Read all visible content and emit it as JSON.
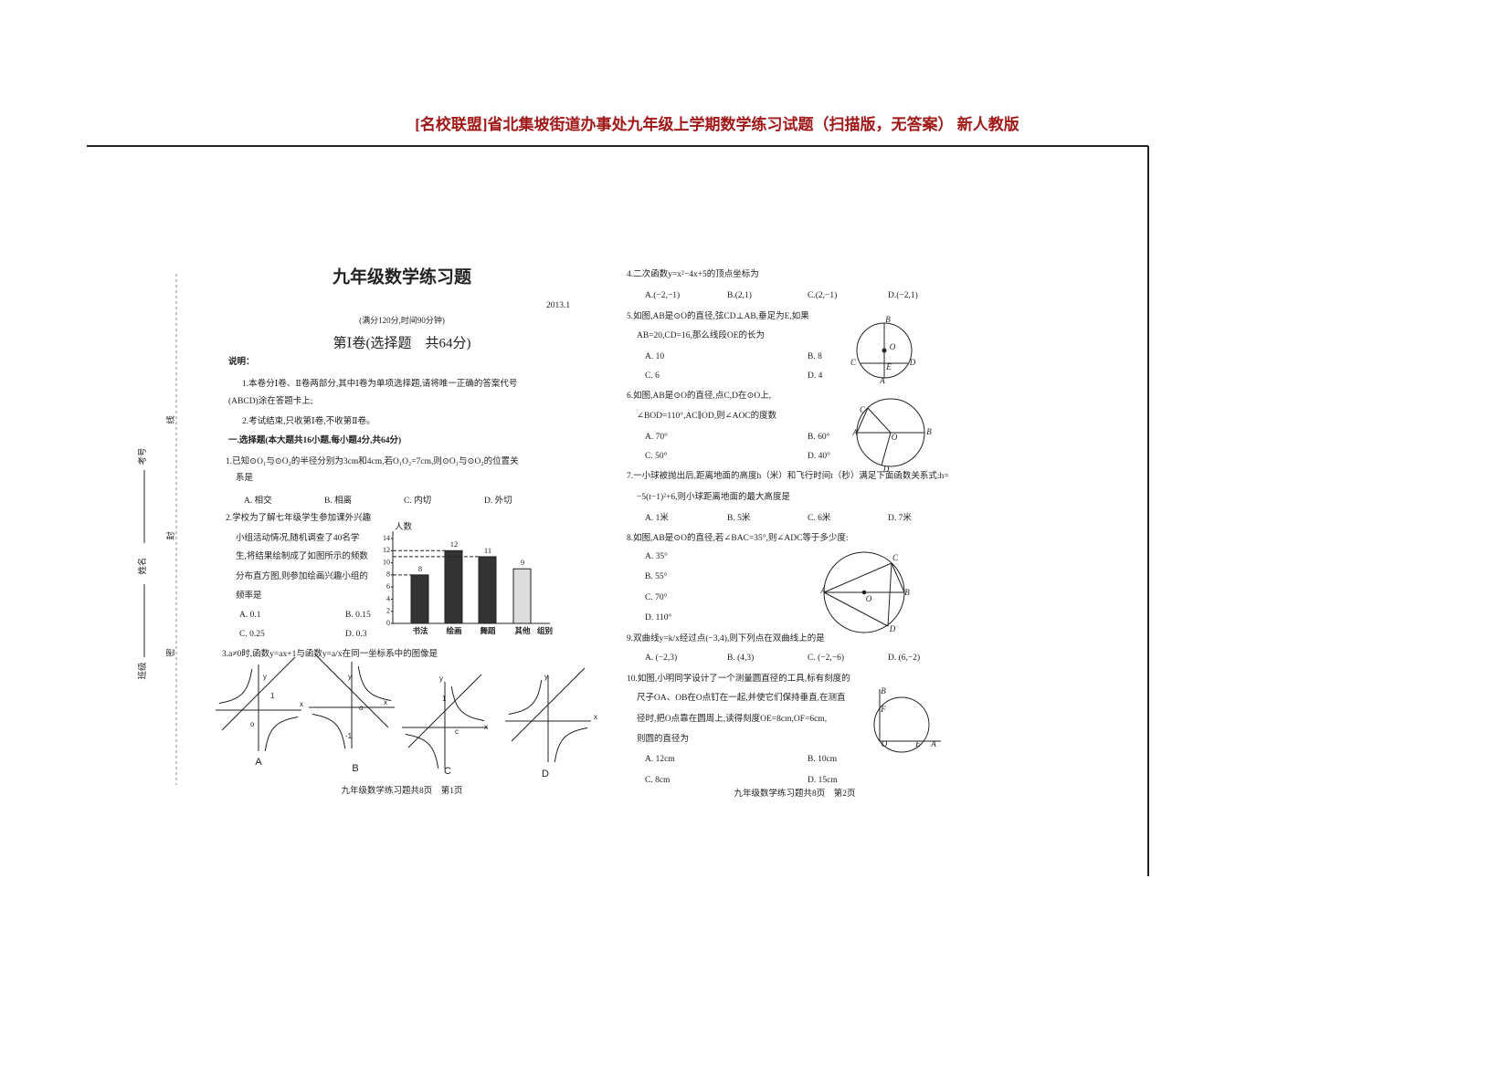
{
  "header": {
    "title": "[名校联盟]省北集坡街道办事处九年级上学期数学练习试题（扫描版，无答案） 新人教版"
  },
  "margin": {
    "fields": [
      "考号",
      "姓名",
      "班级"
    ],
    "seal": [
      "线",
      "封",
      "密"
    ]
  },
  "page1": {
    "title": "九年级数学练习题",
    "date": "2013.1",
    "info": "(满分120分,时间90分钟)",
    "part_title": "第Ⅰ卷(选择题　共64分)",
    "notes_title": "说明：",
    "notes": [
      "1.本卷分Ⅰ卷、Ⅱ卷两部分,其中Ⅰ卷为单项选择题,请将唯一正确的答案代号",
      "(ABCD)涂在答题卡上;",
      "2.考试结束,只收第Ⅰ卷,不收第Ⅱ卷。"
    ],
    "section": "一.选择题(本大题共16小题,每小题4分,共64分)",
    "questions": [
      {
        "lines": [
          "1.已知⊙O₁与⊙O₂的半径分别为3cm和4cm,若O₁O₂=7cm,则⊙O₁与⊙O₂的位置关",
          "系是"
        ],
        "options": [
          "A. 相交",
          "B. 相离",
          "C. 内切",
          "D. 外切"
        ]
      },
      {
        "lines": [
          "2.学校为了解七年级学生参加课外兴趣",
          "小组活动情况,随机调查了40名学",
          "生,将结果绘制成了如图所示的频数",
          "分布直方图,则参加绘画兴趣小组的",
          "频率是"
        ],
        "options": [
          "A. 0.1",
          "B. 0.15",
          "C. 0.25",
          "D. 0.3"
        ]
      },
      {
        "lines": [
          "3.a≠0时,函数y=ax+1与函数y=a/x在同一坐标系中的图像是"
        ],
        "options": []
      }
    ],
    "chart": {
      "y_label": "人数",
      "x_label": "组别",
      "categories": [
        "书法",
        "绘画",
        "舞蹈",
        "其他"
      ],
      "values": [
        8,
        12,
        11,
        9
      ],
      "ylim": [
        0,
        14
      ],
      "yticks": [
        0,
        2,
        4,
        6,
        8,
        10,
        12,
        14
      ]
    },
    "graphs": [
      {
        "label": "A",
        "axis_labels": [
          "y",
          "1",
          "x",
          "o"
        ]
      },
      {
        "label": "B",
        "axis_labels": [
          "y",
          "o",
          "x",
          "-1"
        ]
      },
      {
        "label": "C",
        "axis_labels": [
          "y",
          "1",
          "c",
          "x"
        ]
      },
      {
        "label": "D",
        "axis_labels": [
          "y",
          "x"
        ]
      }
    ],
    "footer": "九年级数学练习题共8页　第1页"
  },
  "page2": {
    "questions": [
      {
        "lines": [
          "4.二次函数y=x²−4x+5的顶点坐标为"
        ],
        "options": [
          "A.(−2,−1)",
          "B.(2,1)",
          "C.(2,−1)",
          "D.(−2,1)"
        ]
      },
      {
        "lines": [
          "5.如图,AB是⊙O的直径,弦CD⊥AB,垂足为E,如果",
          "AB=20,CD=16,那么线段OE的长为"
        ],
        "options": [
          "A. 10",
          "B. 8",
          "C. 6",
          "D. 4"
        ]
      },
      {
        "lines": [
          "6.如图,AB是⊙O的直径,点C,D在⊙O上,",
          "∠BOD=110°,AC∥OD,则∠AOC的度数"
        ],
        "options": [
          "A. 70°",
          "B. 60°",
          "C. 50°",
          "D. 40°"
        ]
      },
      {
        "lines": [
          "7.一小球被抛出后,距离地面的高度h（米）和飞行时间t（秒）满足下面函数关系式:h=",
          "−5(t−1)²+6,则小球距离地面的最大高度是"
        ],
        "options": [
          "A. 1米",
          "B. 5米",
          "C. 6米",
          "D. 7米"
        ]
      },
      {
        "lines": [
          "8.如图,AB是⊙O的直径,若∠BAC=35°,则∠ADC等于多少度:"
        ],
        "options": [
          "A. 35°",
          "B. 55°",
          "C. 70°",
          "D. 110°"
        ]
      },
      {
        "lines": [
          "9.双曲线y=k/x经过点(−3,4),则下列点在双曲线上的是"
        ],
        "options": [
          "A. (−2,3)",
          "B. (4,3)",
          "C. (−2,−6)",
          "D. (6,−2)"
        ]
      },
      {
        "lines": [
          "10.如图,小明同学设计了一个测量圆直径的工具,标有刻度的",
          "尺子OA、OB在O点钉在一起,并使它们保持垂直,在测直",
          "径时,把O点靠在圆周上,读得刻度OE=8cm,OF=6cm,",
          "则圆的直径为"
        ],
        "options": [
          "A. 12cm",
          "B. 10cm",
          "C. 8cm",
          "D. 15cm"
        ]
      }
    ],
    "figures": [
      {
        "labels": [
          "B",
          "O",
          "C",
          "E",
          "D",
          "A"
        ]
      },
      {
        "labels": [
          "C",
          "A",
          "O",
          "B",
          "D"
        ]
      },
      {
        "labels": [
          "A",
          "B",
          "C",
          "D",
          "O"
        ]
      },
      {
        "labels": [
          "B",
          "F",
          "O",
          "E",
          "A"
        ]
      }
    ],
    "footer": "九年级数学练习题共8页　第2页"
  }
}
